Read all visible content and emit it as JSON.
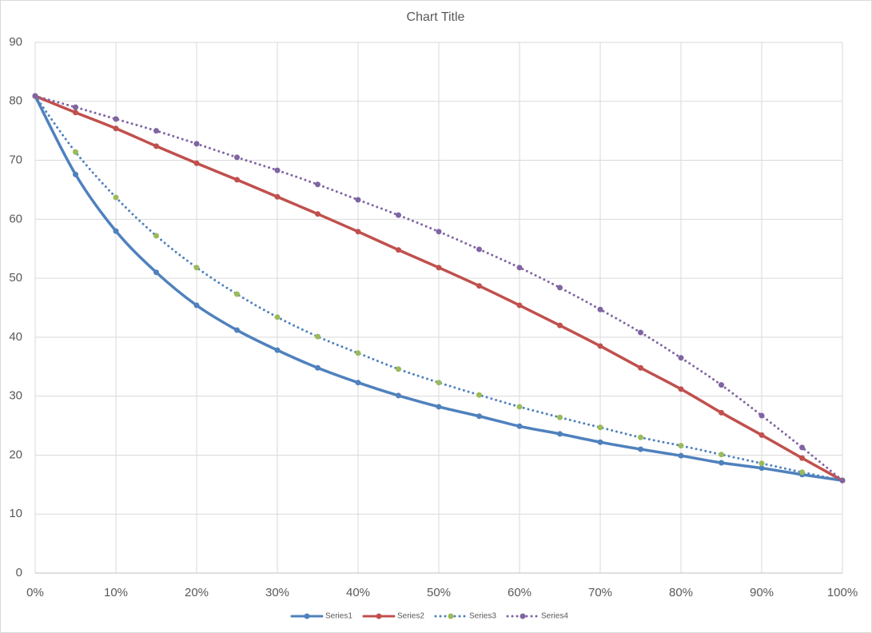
{
  "chart_data": {
    "type": "line",
    "title": "Chart Title",
    "x": [
      0,
      5,
      10,
      15,
      20,
      25,
      30,
      35,
      40,
      45,
      50,
      55,
      60,
      65,
      70,
      75,
      80,
      85,
      90,
      95,
      100
    ],
    "series": [
      {
        "name": "Series1",
        "color": "#4f81bd",
        "marker_color": "#4f81bd",
        "dash": "solid",
        "values": [
          80.9,
          67.6,
          58.0,
          51.0,
          45.4,
          41.2,
          37.8,
          34.8,
          32.3,
          30.1,
          28.2,
          26.6,
          24.9,
          23.6,
          22.2,
          21.0,
          19.9,
          18.7,
          17.8,
          16.7,
          15.7
        ]
      },
      {
        "name": "Series2",
        "color": "#c0504d",
        "marker_color": "#c0504d",
        "dash": "solid",
        "values": [
          80.9,
          78.1,
          75.4,
          72.4,
          69.5,
          66.7,
          63.8,
          60.9,
          57.9,
          54.8,
          51.8,
          48.7,
          45.4,
          42.0,
          38.5,
          34.8,
          31.2,
          27.2,
          23.4,
          19.5,
          15.7
        ]
      },
      {
        "name": "Series3",
        "color": "#4f81bd",
        "marker_color": "#9bbb59",
        "dash": "dot",
        "values": [
          80.9,
          71.4,
          63.7,
          57.2,
          51.8,
          47.3,
          43.4,
          40.1,
          37.3,
          34.6,
          32.3,
          30.2,
          28.2,
          26.4,
          24.7,
          23.0,
          21.6,
          20.1,
          18.6,
          17.1,
          15.7
        ]
      },
      {
        "name": "Series4",
        "color": "#8064a2",
        "marker_color": "#8064a2",
        "dash": "dot",
        "values": [
          80.9,
          79.0,
          77.0,
          75.0,
          72.8,
          70.5,
          68.3,
          65.9,
          63.3,
          60.7,
          57.9,
          54.9,
          51.8,
          48.4,
          44.7,
          40.8,
          36.5,
          31.9,
          26.7,
          21.3,
          15.7
        ]
      }
    ],
    "xlim": [
      0,
      100
    ],
    "xticks": [
      {
        "value": 0,
        "label": "0%"
      },
      {
        "value": 10,
        "label": "10%"
      },
      {
        "value": 20,
        "label": "20%"
      },
      {
        "value": 30,
        "label": "30%"
      },
      {
        "value": 40,
        "label": "40%"
      },
      {
        "value": 50,
        "label": "50%"
      },
      {
        "value": 60,
        "label": "60%"
      },
      {
        "value": 70,
        "label": "70%"
      },
      {
        "value": 80,
        "label": "80%"
      },
      {
        "value": 90,
        "label": "90%"
      },
      {
        "value": 100,
        "label": "100%"
      }
    ],
    "ylim": [
      0,
      90
    ],
    "yticks": [
      0,
      10,
      20,
      30,
      40,
      50,
      60,
      70,
      80,
      90
    ],
    "grid": true,
    "smooth": true,
    "legend": "bottom"
  }
}
